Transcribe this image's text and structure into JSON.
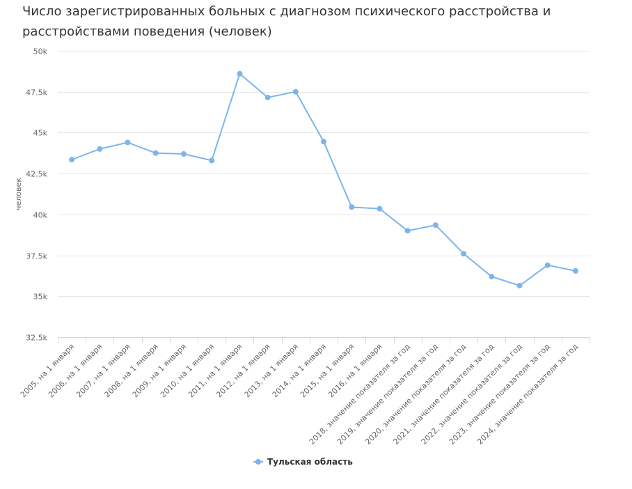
{
  "chart_data": {
    "type": "line",
    "title": "Число зарегистрированных больных с диагнозом психического расстройства и расстройствами поведения (человек)",
    "ylabel": "человек",
    "xlabel": "",
    "ylim": [
      32500,
      50000
    ],
    "yticks": [
      32500,
      35000,
      37500,
      40000,
      42500,
      45000,
      47500,
      50000
    ],
    "ytick_labels": [
      "32.5k",
      "35k",
      "37.5k",
      "40k",
      "42.5k",
      "45k",
      "47.5k",
      "50k"
    ],
    "grid": true,
    "legend_position": "bottom-center",
    "categories": [
      "2005, на 1 января",
      "2006, на 1 января",
      "2007, на 1 января",
      "2008, на 1 января",
      "2009, на 1 января",
      "2010, на 1 января",
      "2011, на 1 января",
      "2012, на 1 января",
      "2013, на 1 января",
      "2014, на 1 января",
      "2015, на 1 января",
      "2016, на 1 января",
      "2018, значение показателя за год",
      "2019, значение показателя за год",
      "2020, значение показателя за год",
      "2021, значение показателя за год",
      "2022, значение показателя за год",
      "2023, значение показателя за год",
      "2024, значение показателя за год"
    ],
    "series": [
      {
        "name": "Тульская область",
        "color": "#7cb5ec",
        "values": [
          43350,
          44000,
          44400,
          43750,
          43700,
          43300,
          48600,
          47150,
          47500,
          44450,
          40450,
          40350,
          39000,
          39350,
          37600,
          36200,
          35650,
          36900,
          36550
        ]
      }
    ]
  }
}
